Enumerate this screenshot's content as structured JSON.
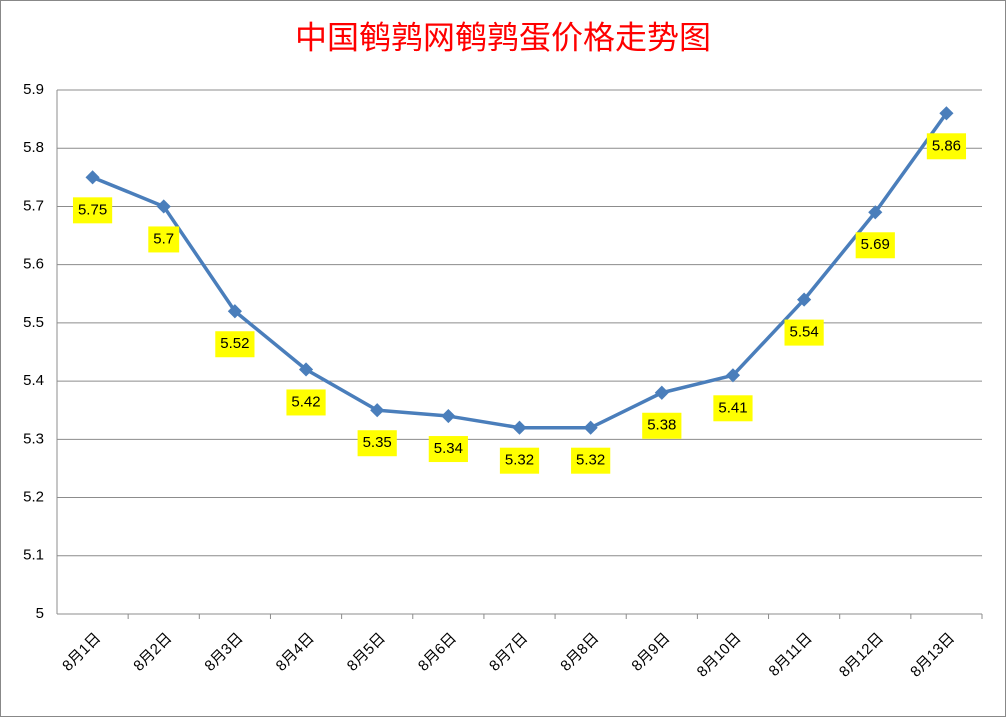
{
  "chart_data": {
    "type": "line",
    "title": "中国鹌鹑网鹌鹑蛋价格走势图",
    "categories": [
      "8月1日",
      "8月2日",
      "8月3日",
      "8月4日",
      "8月5日",
      "8月6日",
      "8月7日",
      "8月8日",
      "8月9日",
      "8月10日",
      "8月11日",
      "8月12日",
      "8月13日"
    ],
    "values": [
      5.75,
      5.7,
      5.52,
      5.42,
      5.35,
      5.34,
      5.32,
      5.32,
      5.38,
      5.41,
      5.54,
      5.69,
      5.86
    ],
    "color": "#4a7ebb",
    "ylim": [
      5,
      5.9
    ],
    "yticks": [
      5,
      5.1,
      5.2,
      5.3,
      5.4,
      5.5,
      5.6,
      5.7,
      5.8,
      5.9
    ],
    "grid": true,
    "label_color": "#ffff00"
  }
}
